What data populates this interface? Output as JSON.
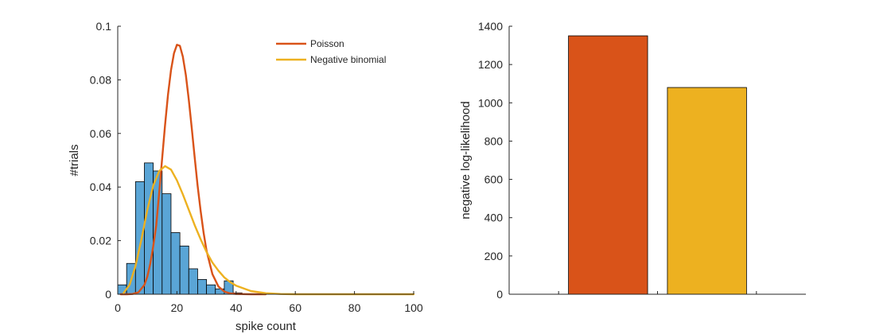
{
  "chart_data": [
    {
      "type": "bar",
      "subtype": "histogram with fitted curves",
      "title": "",
      "xlabel": "spike count",
      "ylabel": "#trials",
      "xlim": [
        0,
        100
      ],
      "ylim": [
        0,
        0.1
      ],
      "xticks": [
        0,
        20,
        40,
        60,
        80,
        100
      ],
      "yticks": [
        0,
        0.02,
        0.04,
        0.06,
        0.08,
        0.1
      ],
      "xtick_labels": [
        "0",
        "20",
        "40",
        "60",
        "80",
        "100"
      ],
      "ytick_labels": [
        "0",
        "0.02",
        "0.04",
        "0.06",
        "0.08",
        "0.1"
      ],
      "grid": false,
      "legend_position": "top-right",
      "histogram": {
        "bin_width": 3,
        "bin_edges_start": 0,
        "values": [
          0.0035,
          0.0115,
          0.042,
          0.049,
          0.046,
          0.0375,
          0.023,
          0.018,
          0.0095,
          0.0055,
          0.0035,
          0.002,
          0.005,
          0.0005
        ],
        "color": "#5aa5d6"
      },
      "series": [
        {
          "name": "Poisson",
          "color": "#d95319",
          "x": [
            1,
            3,
            5,
            7,
            9,
            10,
            11,
            12,
            13,
            14,
            15,
            16,
            17,
            18,
            19,
            20,
            21,
            22,
            23,
            24,
            25,
            26,
            27,
            28,
            29,
            30,
            32,
            34,
            36,
            38,
            40,
            45,
            50
          ],
          "y": [
            0,
            0,
            0.0001,
            0.0007,
            0.0035,
            0.0066,
            0.0114,
            0.0179,
            0.0257,
            0.0379,
            0.0506,
            0.0632,
            0.0745,
            0.0837,
            0.0899,
            0.0931,
            0.0927,
            0.0887,
            0.0818,
            0.0726,
            0.0621,
            0.0511,
            0.0405,
            0.0311,
            0.023,
            0.0163,
            0.0075,
            0.0029,
            0.001,
            0.0003,
            0.0001,
            0,
            0
          ]
        },
        {
          "name": "Negative binomial",
          "color": "#edb120",
          "x": [
            2,
            4,
            6,
            8,
            10,
            12,
            14,
            16,
            18,
            20,
            22,
            24,
            26,
            28,
            30,
            32,
            34,
            36,
            38,
            40,
            45,
            50,
            55,
            60,
            70,
            80,
            90,
            100
          ],
          "y": [
            0.0005,
            0.0035,
            0.0105,
            0.0205,
            0.0315,
            0.0405,
            0.046,
            0.0478,
            0.0465,
            0.0425,
            0.0373,
            0.0315,
            0.0258,
            0.0205,
            0.0158,
            0.0118,
            0.0088,
            0.0063,
            0.0045,
            0.0032,
            0.0012,
            0.0004,
            0.0001,
            0,
            0,
            0,
            0,
            0
          ]
        }
      ]
    },
    {
      "type": "bar",
      "title": "",
      "xlabel": "",
      "ylabel": "negative log-likelihood",
      "ylim": [
        0,
        1400
      ],
      "yticks": [
        0,
        200,
        400,
        600,
        800,
        1000,
        1200,
        1400
      ],
      "ytick_labels": [
        "0",
        "200",
        "400",
        "600",
        "800",
        "1000",
        "1200",
        "1400"
      ],
      "xlim": [
        0,
        3
      ],
      "xtick_positions": [
        0.5,
        1.5,
        2.5
      ],
      "xtick_labels": [
        "",
        "",
        ""
      ],
      "grid": false,
      "bars": [
        {
          "x": 1,
          "value": 1350,
          "color": "#d95319"
        },
        {
          "x": 2,
          "value": 1080,
          "color": "#edb120"
        }
      ]
    }
  ]
}
